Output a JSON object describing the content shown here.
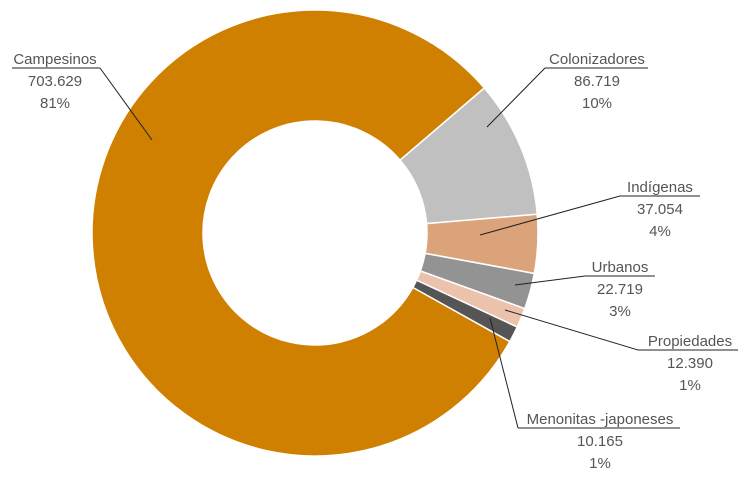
{
  "chart_data": {
    "type": "donut",
    "categories": [
      "Colonizadores",
      "Indígenas",
      "Urbanos",
      "Propiedades",
      "Menonitas -japoneses",
      "Campesinos"
    ],
    "values": [
      86719,
      37054,
      22719,
      12390,
      10165,
      703629
    ],
    "value_labels": [
      "86.719",
      "37.054",
      "22.719",
      "12.390",
      "10.165",
      "703.629"
    ],
    "percents": [
      10,
      4,
      3,
      1,
      1,
      81
    ],
    "percent_labels": [
      "10%",
      "4%",
      "3%",
      "1%",
      "1%",
      "81%"
    ],
    "colors": [
      "#c0c0c0",
      "#dba37a",
      "#939393",
      "#ebc3ad",
      "#555555",
      "#d08000"
    ]
  }
}
